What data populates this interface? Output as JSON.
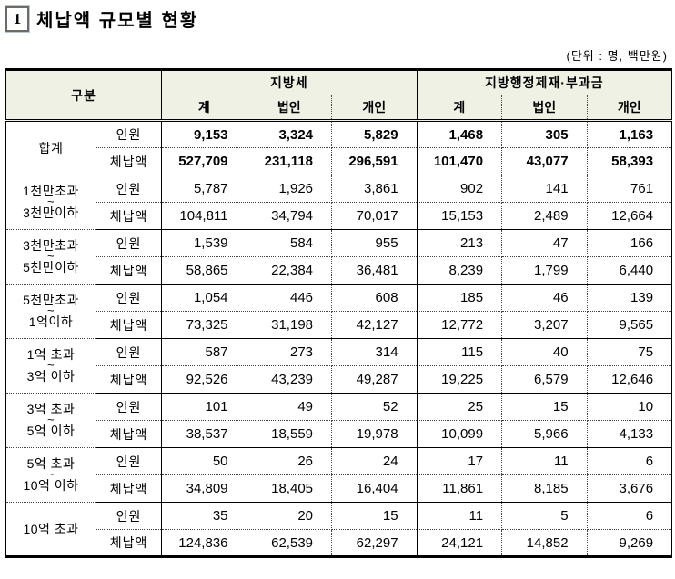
{
  "title": {
    "index": "1",
    "text": "체납액 규모별 현황"
  },
  "unit_note": "(단위 : 명, 백만원)",
  "table": {
    "tilde_char": "~",
    "corner_header": "구분",
    "sections": [
      {
        "label": "지방세"
      },
      {
        "label": "지방행정제재·부과금"
      }
    ],
    "sub_headers": [
      "계",
      "법인",
      "개인",
      "계",
      "법인",
      "개인"
    ],
    "groups": [
      {
        "label_lines": [
          "합계"
        ],
        "bold": true,
        "rows": [
          {
            "metric": "인원",
            "values": [
              "9,153",
              "3,324",
              "5,829",
              "1,468",
              "305",
              "1,163"
            ]
          },
          {
            "metric": "체납액",
            "values": [
              "527,709",
              "231,118",
              "296,591",
              "101,470",
              "43,077",
              "58,393"
            ]
          }
        ]
      },
      {
        "label_lines": [
          "1천만초과",
          "3천만이하"
        ],
        "bold": false,
        "rows": [
          {
            "metric": "인원",
            "values": [
              "5,787",
              "1,926",
              "3,861",
              "902",
              "141",
              "761"
            ]
          },
          {
            "metric": "체납액",
            "values": [
              "104,811",
              "34,794",
              "70,017",
              "15,153",
              "2,489",
              "12,664"
            ]
          }
        ]
      },
      {
        "label_lines": [
          "3천만초과",
          "5천만이하"
        ],
        "bold": false,
        "rows": [
          {
            "metric": "인원",
            "values": [
              "1,539",
              "584",
              "955",
              "213",
              "47",
              "166"
            ]
          },
          {
            "metric": "체납액",
            "values": [
              "58,865",
              "22,384",
              "36,481",
              "8,239",
              "1,799",
              "6,440"
            ]
          }
        ]
      },
      {
        "label_lines": [
          "5천만초과",
          "1억이하"
        ],
        "bold": false,
        "rows": [
          {
            "metric": "인원",
            "values": [
              "1,054",
              "446",
              "608",
              "185",
              "46",
              "139"
            ]
          },
          {
            "metric": "체납액",
            "values": [
              "73,325",
              "31,198",
              "42,127",
              "12,772",
              "3,207",
              "9,565"
            ]
          }
        ]
      },
      {
        "label_lines": [
          "1억 초과",
          "3억 이하"
        ],
        "bold": false,
        "rows": [
          {
            "metric": "인원",
            "values": [
              "587",
              "273",
              "314",
              "115",
              "40",
              "75"
            ]
          },
          {
            "metric": "체납액",
            "values": [
              "92,526",
              "43,239",
              "49,287",
              "19,225",
              "6,579",
              "12,646"
            ]
          }
        ]
      },
      {
        "label_lines": [
          "3억 초과",
          "5억 이하"
        ],
        "bold": false,
        "rows": [
          {
            "metric": "인원",
            "values": [
              "101",
              "49",
              "52",
              "25",
              "15",
              "10"
            ]
          },
          {
            "metric": "체납액",
            "values": [
              "38,537",
              "18,559",
              "19,978",
              "10,099",
              "5,966",
              "4,133"
            ]
          }
        ]
      },
      {
        "label_lines": [
          "5억 초과",
          "10억 이하"
        ],
        "bold": false,
        "rows": [
          {
            "metric": "인원",
            "values": [
              "50",
              "26",
              "24",
              "17",
              "11",
              "6"
            ]
          },
          {
            "metric": "체납액",
            "values": [
              "34,809",
              "18,405",
              "16,404",
              "11,861",
              "8,185",
              "3,676"
            ]
          }
        ]
      },
      {
        "label_lines": [
          "10억 초과"
        ],
        "bold": false,
        "rows": [
          {
            "metric": "인원",
            "values": [
              "35",
              "20",
              "15",
              "11",
              "5",
              "6"
            ]
          },
          {
            "metric": "체납액",
            "values": [
              "124,836",
              "62,539",
              "62,297",
              "24,121",
              "14,852",
              "9,269"
            ]
          }
        ]
      }
    ]
  }
}
